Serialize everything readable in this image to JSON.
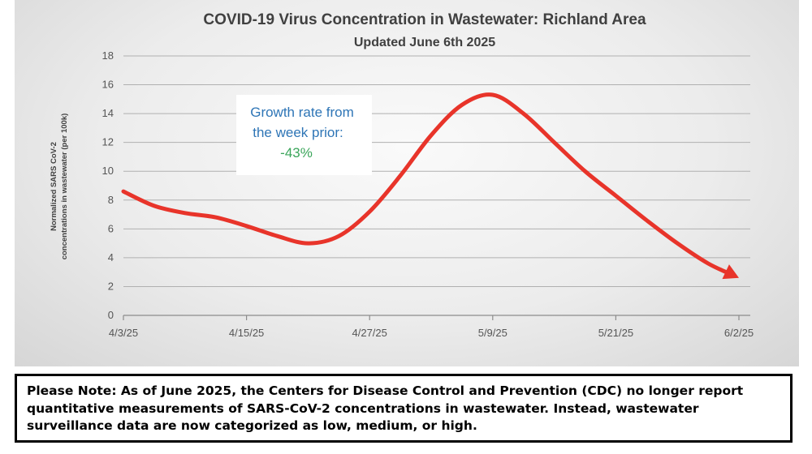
{
  "chart_data": {
    "type": "line",
    "title": "COVID-19 Virus Concentration in Wastewater: Richland Area",
    "subtitle": "Updated June 6th 2025",
    "ylabel_lines": [
      "Normalized SARS CoV-2",
      "concentrations in wastewater (per 100k)"
    ],
    "xlabel": "",
    "ylim": [
      0,
      18
    ],
    "yticks": [
      0,
      2,
      4,
      6,
      8,
      10,
      12,
      14,
      16,
      18
    ],
    "xticks": [
      "4/3/25",
      "4/15/25",
      "4/27/25",
      "5/9/25",
      "5/21/25",
      "6/2/25"
    ],
    "x_days_range": [
      0,
      60
    ],
    "grid": true,
    "line_color": "#e8342a",
    "series": [
      {
        "values": [
          {
            "x": "4/3/25",
            "y": 8.6
          },
          {
            "x": "4/6/25",
            "y": 7.6
          },
          {
            "x": "4/9/25",
            "y": 7.1
          },
          {
            "x": "4/12/25",
            "y": 6.8
          },
          {
            "x": "4/15/25",
            "y": 6.2
          },
          {
            "x": "4/18/25",
            "y": 5.5
          },
          {
            "x": "4/21/25",
            "y": 5.0
          },
          {
            "x": "4/24/25",
            "y": 5.5
          },
          {
            "x": "4/27/25",
            "y": 7.2
          },
          {
            "x": "4/30/25",
            "y": 9.7
          },
          {
            "x": "5/3/25",
            "y": 12.5
          },
          {
            "x": "5/6/25",
            "y": 14.6
          },
          {
            "x": "5/9/25",
            "y": 15.3
          },
          {
            "x": "5/12/25",
            "y": 14.0
          },
          {
            "x": "5/15/25",
            "y": 12.0
          },
          {
            "x": "5/18/25",
            "y": 10.0
          },
          {
            "x": "5/21/25",
            "y": 8.3
          },
          {
            "x": "5/24/25",
            "y": 6.6
          },
          {
            "x": "5/27/25",
            "y": 5.0
          },
          {
            "x": "5/30/25",
            "y": 3.6
          },
          {
            "x": "6/2/25",
            "y": 2.6
          }
        ]
      }
    ],
    "annotation": {
      "line1": "Growth rate from",
      "line2": "the week prior:",
      "value": "-43%",
      "text_color": "#2e75b6",
      "value_color": "#3aa55a"
    }
  },
  "note": {
    "text": "Please Note: As of June 2025, the Centers for Disease Control and Prevention (CDC) no longer report quantitative measurements of SARS-CoV-2 concentrations in wastewater. Instead, wastewater surveillance data are now categorized as low, medium, or high."
  }
}
